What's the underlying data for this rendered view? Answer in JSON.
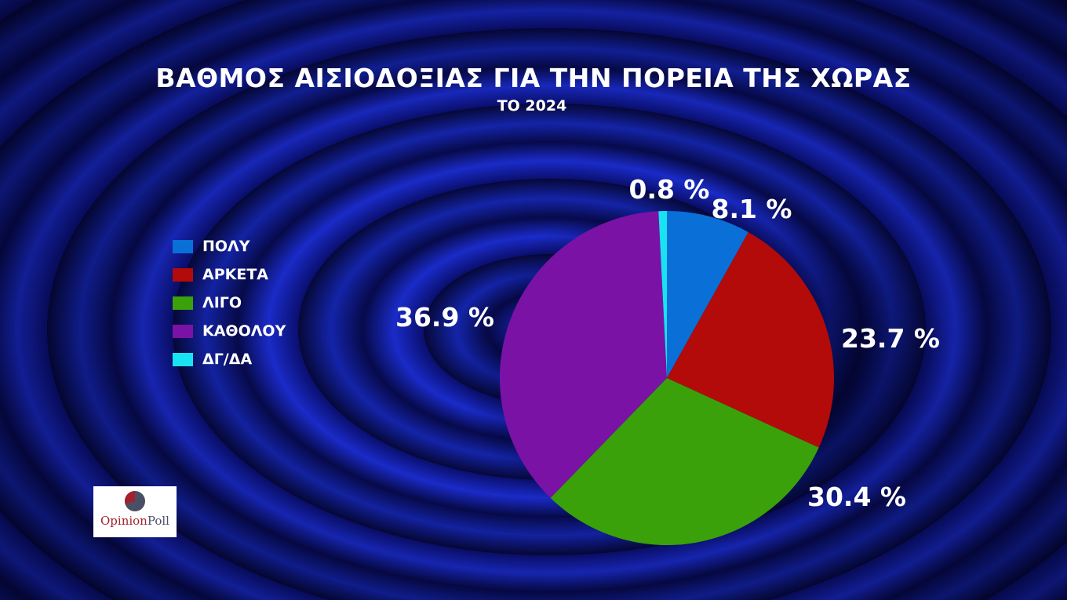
{
  "chart_data": {
    "type": "pie",
    "title": "ΒΑΘΜΟΣ ΑΙΣΙΟΔΟΞΙΑΣ ΓΙΑ ΤΗΝ ΠΟΡΕΙΑ ΤΗΣ ΧΩΡΑΣ",
    "subtitle": "ΤΟ 2024",
    "legend_position": "left",
    "slices": [
      {
        "label": "ΠΟΛΥ",
        "value": 8.1,
        "value_label": "8.1 %",
        "color": "#0a6fd6"
      },
      {
        "label": "ΑΡΚΕΤΑ",
        "value": 23.7,
        "value_label": "23.7 %",
        "color": "#b30a0a"
      },
      {
        "label": "ΛΙΓΟ",
        "value": 30.4,
        "value_label": "30.4 %",
        "color": "#3aa10a"
      },
      {
        "label": "ΚΑΘΟΛΟΥ",
        "value": 36.9,
        "value_label": "36.9 %",
        "color": "#7a12a6"
      },
      {
        "label": "ΔΓ/ΔΑ",
        "value": 0.8,
        "value_label": "0.8 %",
        "color": "#19e3f2"
      }
    ]
  },
  "logo": {
    "text_part1": "Opinion",
    "text_part2": "Poll"
  }
}
